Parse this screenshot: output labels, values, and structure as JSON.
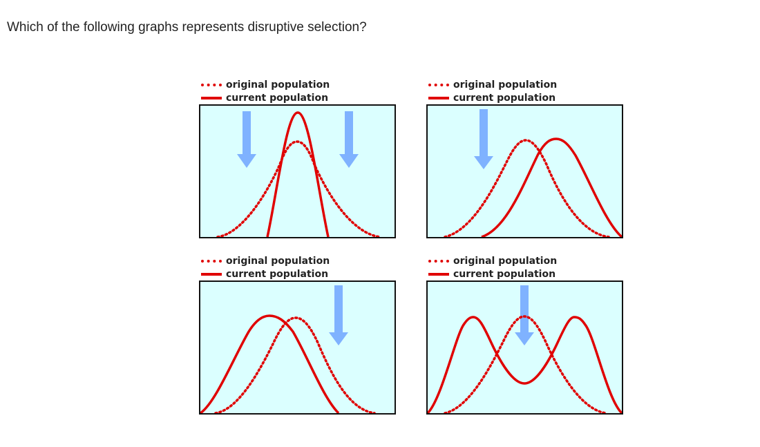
{
  "question": "Which of the following graphs represents disruptive selection?",
  "colors": {
    "curve": "#e00000",
    "arrow": "#7fb2ff",
    "plot_background": "#dbffff",
    "frame": "#111111"
  },
  "graphs": [
    {
      "legend": {
        "original": "original population",
        "current": "current population"
      },
      "arrows": [
        "outer-left",
        "outer-right"
      ],
      "original_shape": "wide-bell",
      "current_shape": "narrow-tall-bell"
    },
    {
      "legend": {
        "original": "original population",
        "current": "current population"
      },
      "arrows": [
        "left"
      ],
      "original_shape": "bell",
      "current_shape": "bell-shifted-right"
    },
    {
      "legend": {
        "original": "original population",
        "current": "current population"
      },
      "arrows": [
        "right"
      ],
      "original_shape": "bell",
      "current_shape": "bell-shifted-left"
    },
    {
      "legend": {
        "original": "original population",
        "current": "current population"
      },
      "arrows": [
        "center"
      ],
      "original_shape": "bell",
      "current_shape": "bimodal"
    }
  ]
}
